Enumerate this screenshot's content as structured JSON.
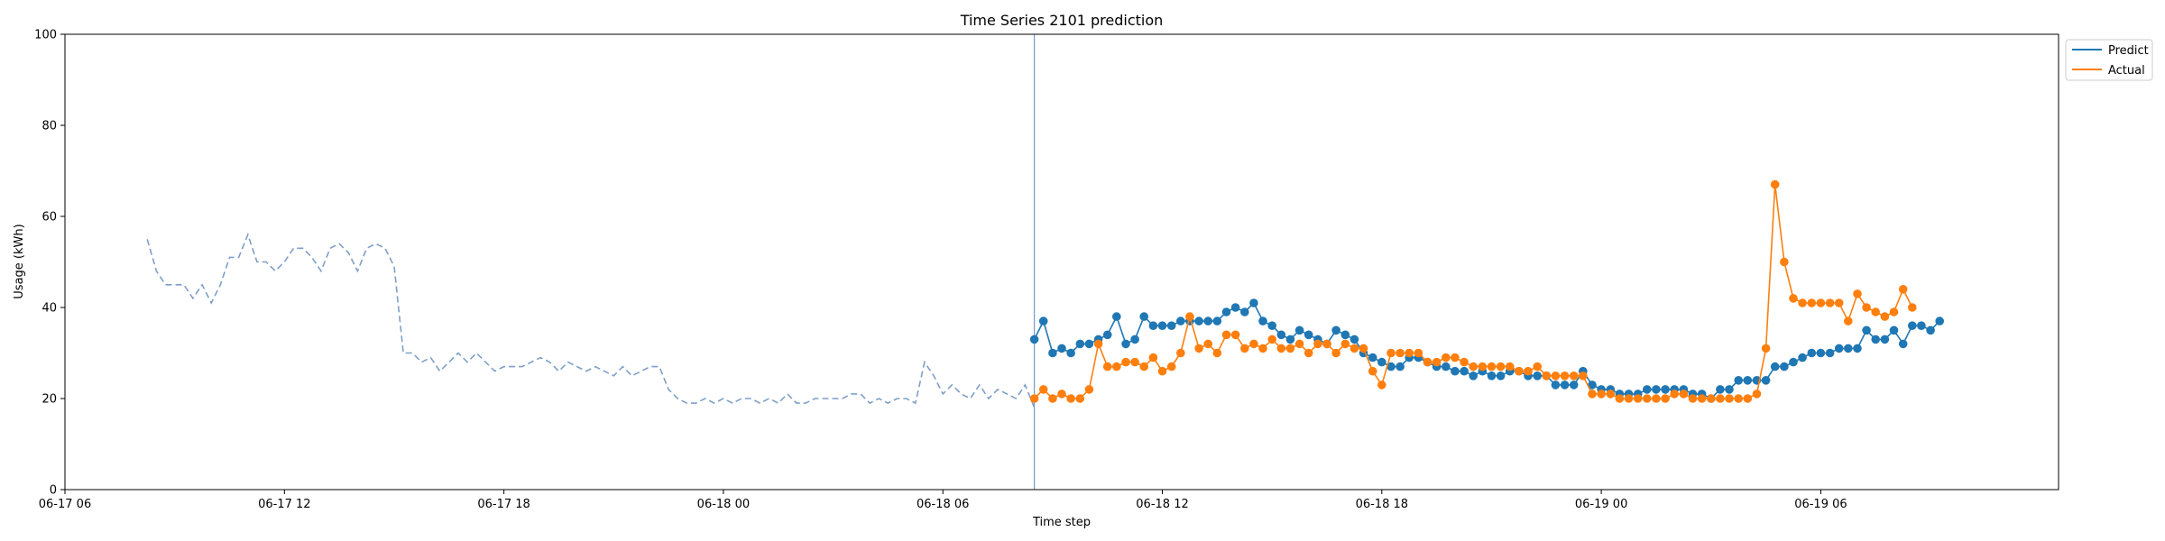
{
  "chart_data": {
    "type": "line",
    "title": "Time Series 2101 prediction",
    "xlabel": "Time step",
    "ylabel": "Usage (kWh)",
    "ylim": [
      0,
      100
    ],
    "yticks": [
      "0",
      "20",
      "40",
      "60",
      "80",
      "100"
    ],
    "xlim": [
      "2024-06-17 06:00",
      "2024-06-19 12:30"
    ],
    "xtick_labels": [
      "06-17 06",
      "06-17 12",
      "06-17 18",
      "06-18 00",
      "06-18 06",
      "06-18 12",
      "06-18 18",
      "06-19 00",
      "06-19 06"
    ],
    "xtick_times": [
      "2024-06-17 06:00",
      "2024-06-17 12:00",
      "2024-06-17 18:00",
      "2024-06-18 00:00",
      "2024-06-18 06:00",
      "2024-06-18 12:00",
      "2024-06-18 18:00",
      "2024-06-19 00:00",
      "2024-06-19 06:00"
    ],
    "forecast_start": "2024-06-18 08:30",
    "interval_minutes": 15,
    "legend_position": "outside top-right",
    "history": {
      "start": "2024-06-17 08:15",
      "style": "dashed",
      "color": "#7f9fc8",
      "values": [
        55,
        48,
        45,
        45,
        45,
        42,
        45,
        41,
        45,
        51,
        51,
        56,
        50,
        50,
        48,
        50,
        53,
        53,
        51,
        48,
        53,
        54,
        52,
        48,
        53,
        54,
        53,
        49,
        30,
        30,
        28,
        29,
        26,
        28,
        30,
        28,
        30,
        28,
        26,
        27,
        27,
        27,
        28,
        29,
        28,
        26,
        28,
        27,
        26,
        27,
        26,
        25,
        27,
        25,
        26,
        27,
        27,
        22,
        20,
        19,
        19,
        20,
        19,
        20,
        19,
        20,
        20,
        19,
        20,
        19,
        21,
        19,
        19,
        20,
        20,
        20,
        20,
        21,
        21,
        19,
        20,
        19,
        20,
        20,
        19,
        28,
        25,
        21,
        23,
        21,
        20,
        23,
        20,
        22,
        21,
        20,
        23,
        18
      ]
    },
    "series": [
      {
        "name": "Predict",
        "color": "#1f77b4",
        "start": "2024-06-18 08:30",
        "values": [
          33,
          37,
          30,
          31,
          30,
          32,
          32,
          33,
          34,
          38,
          32,
          33,
          38,
          36,
          36,
          36,
          37,
          37,
          37,
          37,
          37,
          39,
          40,
          39,
          41,
          37,
          36,
          34,
          33,
          35,
          34,
          33,
          32,
          35,
          34,
          33,
          30,
          29,
          28,
          27,
          27,
          29,
          29,
          28,
          27,
          27,
          26,
          26,
          25,
          26,
          25,
          25,
          26,
          26,
          25,
          25,
          25,
          23,
          23,
          23,
          26,
          23,
          22,
          22,
          21,
          21,
          21,
          22,
          22,
          22,
          22,
          22,
          21,
          21,
          20,
          22,
          22,
          24,
          24,
          24,
          24,
          27,
          27,
          28,
          29,
          30,
          30,
          30,
          31,
          31,
          31,
          35,
          33,
          33,
          35,
          32,
          36,
          36,
          35,
          37
        ]
      },
      {
        "name": "Actual",
        "color": "#ff7f0e",
        "start": "2024-06-18 08:30",
        "values": [
          20,
          22,
          20,
          21,
          20,
          20,
          22,
          32,
          27,
          27,
          28,
          28,
          27,
          29,
          26,
          27,
          30,
          38,
          31,
          32,
          30,
          34,
          34,
          31,
          32,
          31,
          33,
          31,
          31,
          32,
          30,
          32,
          32,
          30,
          32,
          31,
          31,
          26,
          23,
          30,
          30,
          30,
          30,
          28,
          28,
          29,
          29,
          28,
          27,
          27,
          27,
          27,
          27,
          26,
          26,
          27,
          25,
          25,
          25,
          25,
          25,
          21,
          21,
          21,
          20,
          20,
          20,
          20,
          20,
          20,
          21,
          21,
          20,
          20,
          20,
          20,
          20,
          20,
          20,
          21,
          31,
          67,
          50,
          42,
          41,
          41,
          41,
          41,
          41,
          37,
          43,
          40,
          39,
          38,
          39,
          44,
          40
        ]
      }
    ]
  }
}
